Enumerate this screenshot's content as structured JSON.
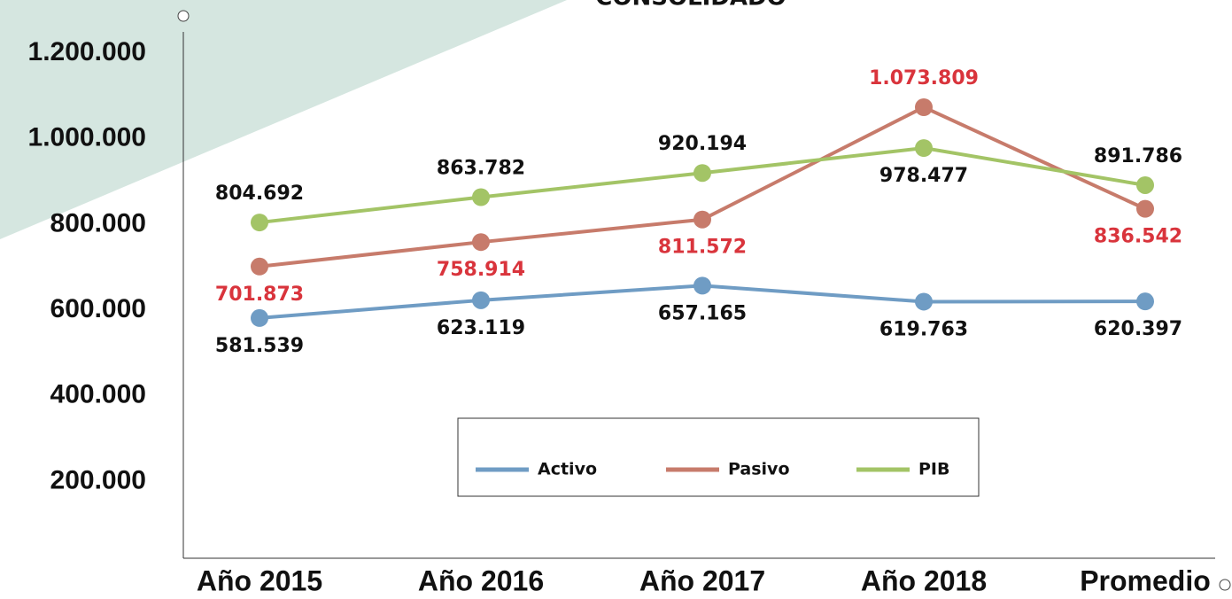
{
  "chart_data": {
    "type": "line",
    "title": "CONSOLIDADO",
    "categories": [
      "Año 2015",
      "Año 2016",
      "Año 2017",
      "Año 2018",
      "Promedio"
    ],
    "series": [
      {
        "name": "Activo",
        "color": "#6f9cc4",
        "label_color": "#111111",
        "values": [
          581539,
          623119,
          657165,
          619763,
          620397
        ],
        "value_labels": [
          "581.539",
          "623.119",
          "657.165",
          "619.763",
          "620.397"
        ]
      },
      {
        "name": "Pasivo",
        "color": "#c77b6b",
        "label_color": "#d9343c",
        "values": [
          701873,
          758914,
          811572,
          1073809,
          836542
        ],
        "value_labels": [
          "701.873",
          "758.914",
          "811.572",
          "1.073.809",
          "836.542"
        ]
      },
      {
        "name": "PIB",
        "color": "#a3c466",
        "label_color": "#111111",
        "values": [
          804692,
          863782,
          920194,
          978477,
          891786
        ],
        "value_labels": [
          "804.692",
          "863.782",
          "920.194",
          "978.477",
          "891.786"
        ]
      }
    ],
    "ylim": [
      0,
      1200000
    ],
    "yticks": [
      {
        "value": 200000,
        "label": "200.000"
      },
      {
        "value": 400000,
        "label": "400.000"
      },
      {
        "value": 600000,
        "label": "600.000"
      },
      {
        "value": 800000,
        "label": "800.000"
      },
      {
        "value": 1000000,
        "label": "1.000.000"
      },
      {
        "value": 1200000,
        "label": "1.200.000"
      }
    ],
    "grid": false
  }
}
